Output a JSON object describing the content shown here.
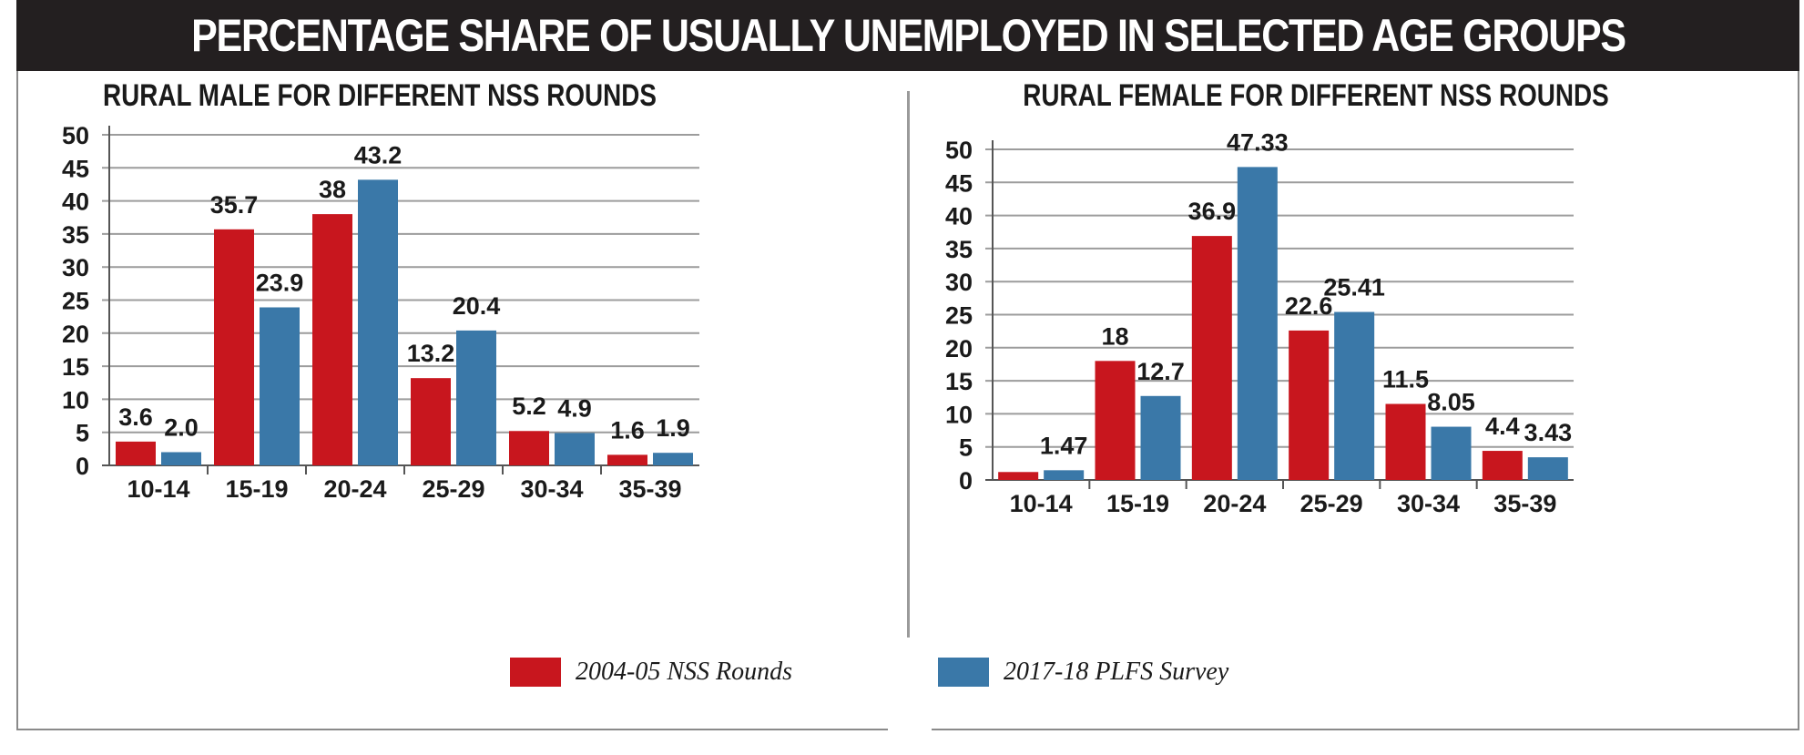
{
  "header": {
    "title": "PERCENTAGE SHARE OF USUALLY UNEMPLOYED IN SELECTED AGE GROUPS"
  },
  "colors": {
    "series_2004": "#c8161e",
    "series_2017": "#3a78a8",
    "grid": "#9c9c9c",
    "header_bg": "#231f20"
  },
  "legend": [
    {
      "name": "2004-05 NSS Rounds",
      "color": "#c8161e"
    },
    {
      "name": "2017-18 PLFS Survey",
      "color": "#3a78a8"
    }
  ],
  "chart_data": [
    {
      "type": "bar",
      "title": "RURAL MALE FOR DIFFERENT NSS ROUNDS",
      "categories": [
        "10-14",
        "15-19",
        "20-24",
        "25-29",
        "30-34",
        "35-39"
      ],
      "series": [
        {
          "name": "2004-05 NSS Rounds",
          "values": [
            3.6,
            35.7,
            38,
            13.2,
            5.2,
            1.6
          ],
          "labels": [
            "3.6",
            "35.7",
            "38",
            "13.2",
            "5.2",
            "1.6"
          ]
        },
        {
          "name": "2017-18 PLFS Survey",
          "values": [
            2.0,
            23.9,
            43.2,
            20.4,
            4.9,
            1.9
          ],
          "labels": [
            "2.0",
            "23.9",
            "43.2",
            "20.4",
            "4.9",
            "1.9"
          ]
        }
      ],
      "yticks": [
        "0",
        "5",
        "10",
        "15",
        "20",
        "25",
        "30",
        "35",
        "40",
        "45",
        "50"
      ],
      "ylim": [
        0,
        50
      ],
      "grid": true
    },
    {
      "type": "bar",
      "title": "RURAL FEMALE FOR DIFFERENT NSS ROUNDS",
      "categories": [
        "10-14",
        "15-19",
        "20-24",
        "25-29",
        "30-34",
        "35-39"
      ],
      "series": [
        {
          "name": "2004-05 NSS Rounds",
          "values": [
            1.2,
            18,
            36.9,
            22.6,
            11.5,
            4.4
          ],
          "labels": [
            "",
            "18",
            "36.9",
            "22.6",
            "11.5",
            "4.4"
          ]
        },
        {
          "name": "2017-18 PLFS Survey",
          "values": [
            1.47,
            12.7,
            47.33,
            25.41,
            8.05,
            3.43
          ],
          "labels": [
            "1.47",
            "12.7",
            "47.33",
            "25.41",
            "8.05",
            "3.43"
          ]
        }
      ],
      "yticks": [
        "0",
        "5",
        "10",
        "15",
        "20",
        "25",
        "30",
        "35",
        "40",
        "45",
        "50"
      ],
      "ylim": [
        0,
        50
      ],
      "grid": true
    }
  ]
}
